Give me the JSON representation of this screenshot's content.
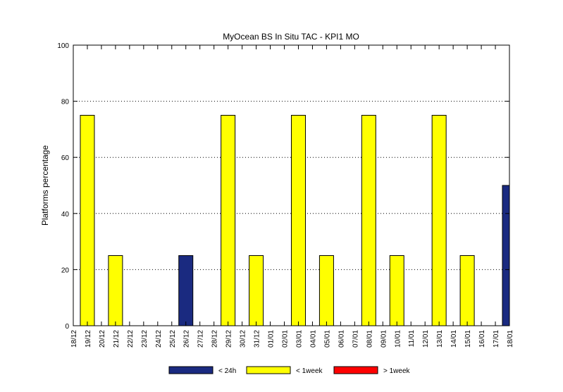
{
  "chart_data": {
    "type": "bar",
    "title": "MyOcean  BS In Situ TAC - KPI1  MO",
    "xlabel": "",
    "ylabel": "Platforms percentage",
    "ylim": [
      0,
      100
    ],
    "yticks": [
      0,
      20,
      40,
      60,
      80,
      100
    ],
    "grid": "horizontal dotted",
    "legend_position": "bottom",
    "categories": [
      "18/12",
      "19/12",
      "20/12",
      "21/12",
      "22/12",
      "23/12",
      "24/12",
      "25/12",
      "26/12",
      "27/12",
      "28/12",
      "29/12",
      "30/12",
      "31/12",
      "01/01",
      "02/01",
      "03/01",
      "04/01",
      "05/01",
      "06/01",
      "07/01",
      "08/01",
      "09/01",
      "10/01",
      "11/01",
      "12/01",
      "13/01",
      "14/01",
      "15/01",
      "16/01",
      "17/01",
      "18/01"
    ],
    "series": [
      {
        "name": "< 24h",
        "color": "#1a2a80",
        "values": [
          0,
          0,
          0,
          0,
          0,
          0,
          0,
          0,
          25,
          0,
          0,
          0,
          0,
          0,
          0,
          0,
          0,
          0,
          0,
          0,
          0,
          0,
          0,
          0,
          0,
          0,
          0,
          0,
          0,
          0,
          0,
          50
        ]
      },
      {
        "name": "< 1week",
        "color": "#ffff00",
        "values": [
          0,
          75,
          0,
          25,
          0,
          0,
          0,
          0,
          0,
          0,
          0,
          75,
          0,
          25,
          0,
          0,
          75,
          0,
          25,
          0,
          0,
          75,
          0,
          25,
          0,
          0,
          75,
          0,
          25,
          0,
          0,
          0
        ]
      },
      {
        "name": "> 1week",
        "color": "#ff0000",
        "values": [
          0,
          0,
          0,
          0,
          0,
          0,
          0,
          0,
          0,
          0,
          0,
          0,
          0,
          0,
          0,
          0,
          0,
          0,
          0,
          0,
          0,
          0,
          0,
          0,
          0,
          0,
          0,
          0,
          0,
          0,
          0,
          0
        ]
      }
    ]
  }
}
